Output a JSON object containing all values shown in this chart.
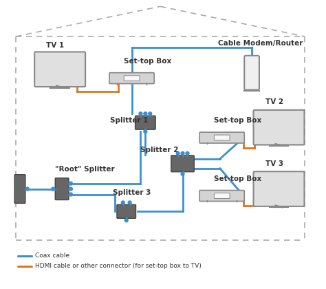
{
  "bg_color": "#ffffff",
  "house_color": "#aaaaaa",
  "coax_color": "#3a8fd4",
  "hdmi_color": "#e07520",
  "legend_coax": "Coax cable",
  "legend_hdmi": "HDMI cable or other connector (for set-top box to TV)",
  "tv1_label": "TV 1",
  "tv2_label": "TV 2",
  "tv3_label": "TV 3",
  "modem_label": "Cable Modem/Router",
  "stb_label": "Set-top Box",
  "splitter1_label": "Splitter 1",
  "splitter2_label": "Splitter 2",
  "splitter3_label": "Splitter 3",
  "root_label": "\"Root\" Splitter",
  "label_color": "#333333",
  "label_fontsize": 7.5,
  "device_gray": "#666666",
  "device_light": "#e0e0e0",
  "device_border": "#888888"
}
